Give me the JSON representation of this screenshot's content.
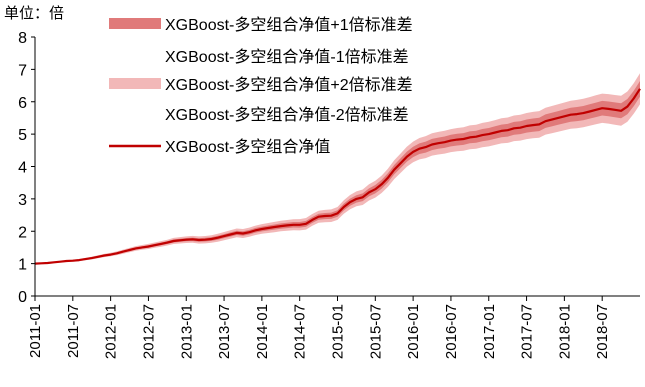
{
  "chart_data": {
    "type": "area",
    "unit_label": "单位：倍",
    "ylim": [
      0,
      8
    ],
    "y_ticks": [
      "0",
      "1",
      "2",
      "3",
      "4",
      "5",
      "6",
      "7",
      "8"
    ],
    "x_tick_labels": [
      "2011-01",
      "2011-07",
      "2012-01",
      "2012-07",
      "2013-01",
      "2013-07",
      "2014-01",
      "2014-07",
      "2015-01",
      "2015-07",
      "2016-01",
      "2016-07",
      "2017-01",
      "2017-07",
      "2018-01",
      "2018-07"
    ],
    "x_tick_index": [
      0,
      6,
      12,
      18,
      24,
      30,
      36,
      42,
      48,
      54,
      60,
      66,
      72,
      78,
      84,
      90
    ],
    "legend_position": "top-right",
    "colors": {
      "band1": "#e07a7a",
      "band2": "#f2b8b8",
      "line": "#c00000",
      "axis": "#000000"
    },
    "series": [
      {
        "name": "XGBoost-多空组合净值+1倍标准差",
        "style": "band1"
      },
      {
        "name": "XGBoost-多空组合净值-1倍标准差",
        "style": "none"
      },
      {
        "name": "XGBoost-多空组合净值+2倍标准差",
        "style": "band2"
      },
      {
        "name": "XGBoost-多空组合净值-2倍标准差",
        "style": "none"
      },
      {
        "name": "XGBoost-多空组合净值",
        "style": "line"
      }
    ],
    "x_index": [
      0,
      1,
      2,
      3,
      4,
      5,
      6,
      7,
      8,
      9,
      10,
      11,
      12,
      13,
      14,
      15,
      16,
      17,
      18,
      19,
      20,
      21,
      22,
      23,
      24,
      25,
      26,
      27,
      28,
      29,
      30,
      31,
      32,
      33,
      34,
      35,
      36,
      37,
      38,
      39,
      40,
      41,
      42,
      43,
      44,
      45,
      46,
      47,
      48,
      49,
      50,
      51,
      52,
      53,
      54,
      55,
      56,
      57,
      58,
      59,
      60,
      61,
      62,
      63,
      64,
      65,
      66,
      67,
      68,
      69,
      70,
      71,
      72,
      73,
      74,
      75,
      76,
      77,
      78,
      79,
      80,
      81,
      82,
      83,
      84,
      85,
      86,
      87,
      88,
      89,
      90,
      91,
      92,
      93,
      94,
      95,
      96
    ],
    "values": [
      1.0,
      1.01,
      1.02,
      1.04,
      1.06,
      1.08,
      1.09,
      1.11,
      1.14,
      1.17,
      1.21,
      1.25,
      1.28,
      1.32,
      1.37,
      1.42,
      1.47,
      1.5,
      1.53,
      1.57,
      1.61,
      1.65,
      1.7,
      1.72,
      1.74,
      1.75,
      1.73,
      1.74,
      1.76,
      1.8,
      1.85,
      1.9,
      1.95,
      1.93,
      1.97,
      2.03,
      2.07,
      2.1,
      2.13,
      2.16,
      2.18,
      2.2,
      2.2,
      2.23,
      2.35,
      2.45,
      2.47,
      2.48,
      2.55,
      2.75,
      2.9,
      3.0,
      3.05,
      3.2,
      3.3,
      3.45,
      3.65,
      3.9,
      4.1,
      4.3,
      4.45,
      4.55,
      4.6,
      4.68,
      4.72,
      4.75,
      4.8,
      4.83,
      4.85,
      4.9,
      4.92,
      4.97,
      5.0,
      5.05,
      5.1,
      5.12,
      5.18,
      5.2,
      5.25,
      5.28,
      5.3,
      5.4,
      5.45,
      5.5,
      5.55,
      5.6,
      5.62,
      5.65,
      5.7,
      5.75,
      5.8,
      5.78,
      5.75,
      5.72,
      5.85,
      6.1,
      6.4
    ],
    "std": [
      0.0,
      0.005,
      0.007,
      0.009,
      0.011,
      0.013,
      0.015,
      0.017,
      0.019,
      0.021,
      0.023,
      0.025,
      0.027,
      0.029,
      0.031,
      0.033,
      0.035,
      0.037,
      0.039,
      0.041,
      0.043,
      0.045,
      0.047,
      0.049,
      0.051,
      0.053,
      0.055,
      0.057,
      0.059,
      0.061,
      0.063,
      0.065,
      0.067,
      0.069,
      0.071,
      0.073,
      0.075,
      0.077,
      0.079,
      0.081,
      0.083,
      0.085,
      0.087,
      0.089,
      0.091,
      0.093,
      0.095,
      0.097,
      0.1,
      0.105,
      0.11,
      0.115,
      0.12,
      0.125,
      0.13,
      0.135,
      0.14,
      0.145,
      0.15,
      0.155,
      0.16,
      0.165,
      0.17,
      0.172,
      0.174,
      0.176,
      0.178,
      0.18,
      0.182,
      0.184,
      0.186,
      0.188,
      0.19,
      0.192,
      0.194,
      0.196,
      0.198,
      0.2,
      0.202,
      0.204,
      0.206,
      0.208,
      0.21,
      0.212,
      0.214,
      0.216,
      0.218,
      0.22,
      0.222,
      0.224,
      0.226,
      0.228,
      0.23,
      0.232,
      0.234,
      0.236,
      0.24
    ]
  }
}
